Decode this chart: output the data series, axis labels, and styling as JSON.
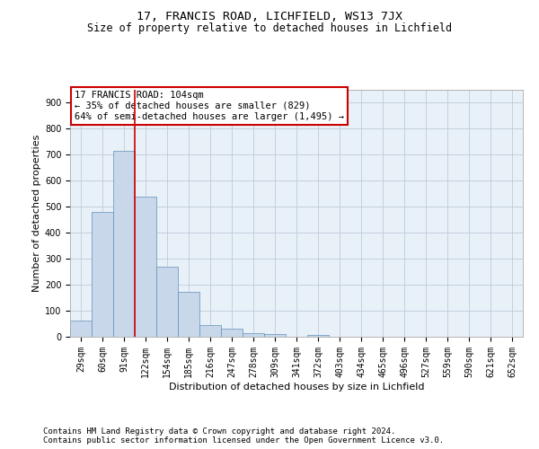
{
  "title1": "17, FRANCIS ROAD, LICHFIELD, WS13 7JX",
  "title2": "Size of property relative to detached houses in Lichfield",
  "xlabel": "Distribution of detached houses by size in Lichfield",
  "ylabel": "Number of detached properties",
  "categories": [
    "29sqm",
    "60sqm",
    "91sqm",
    "122sqm",
    "154sqm",
    "185sqm",
    "216sqm",
    "247sqm",
    "278sqm",
    "309sqm",
    "341sqm",
    "372sqm",
    "403sqm",
    "434sqm",
    "465sqm",
    "496sqm",
    "527sqm",
    "559sqm",
    "590sqm",
    "621sqm",
    "652sqm"
  ],
  "values": [
    62,
    480,
    716,
    538,
    268,
    172,
    44,
    30,
    15,
    12,
    0,
    8,
    0,
    0,
    0,
    0,
    0,
    0,
    0,
    0,
    0
  ],
  "bar_color": "#c8d8ea",
  "bar_edge_color": "#6090b8",
  "grid_color": "#c0ccd8",
  "background_color": "#e8f0f8",
  "vline_index": 2,
  "vline_color": "#cc0000",
  "annotation_line1": "17 FRANCIS ROAD: 104sqm",
  "annotation_line2": "← 35% of detached houses are smaller (829)",
  "annotation_line3": "64% of semi-detached houses are larger (1,495) →",
  "annotation_box_edgecolor": "#cc0000",
  "ylim_max": 950,
  "yticks": [
    0,
    100,
    200,
    300,
    400,
    500,
    600,
    700,
    800,
    900
  ],
  "footer1": "Contains HM Land Registry data © Crown copyright and database right 2024.",
  "footer2": "Contains public sector information licensed under the Open Government Licence v3.0.",
  "title1_fontsize": 9.5,
  "title2_fontsize": 8.5,
  "axis_label_fontsize": 8,
  "tick_fontsize": 7,
  "annotation_fontsize": 7.5,
  "footer_fontsize": 6.5
}
